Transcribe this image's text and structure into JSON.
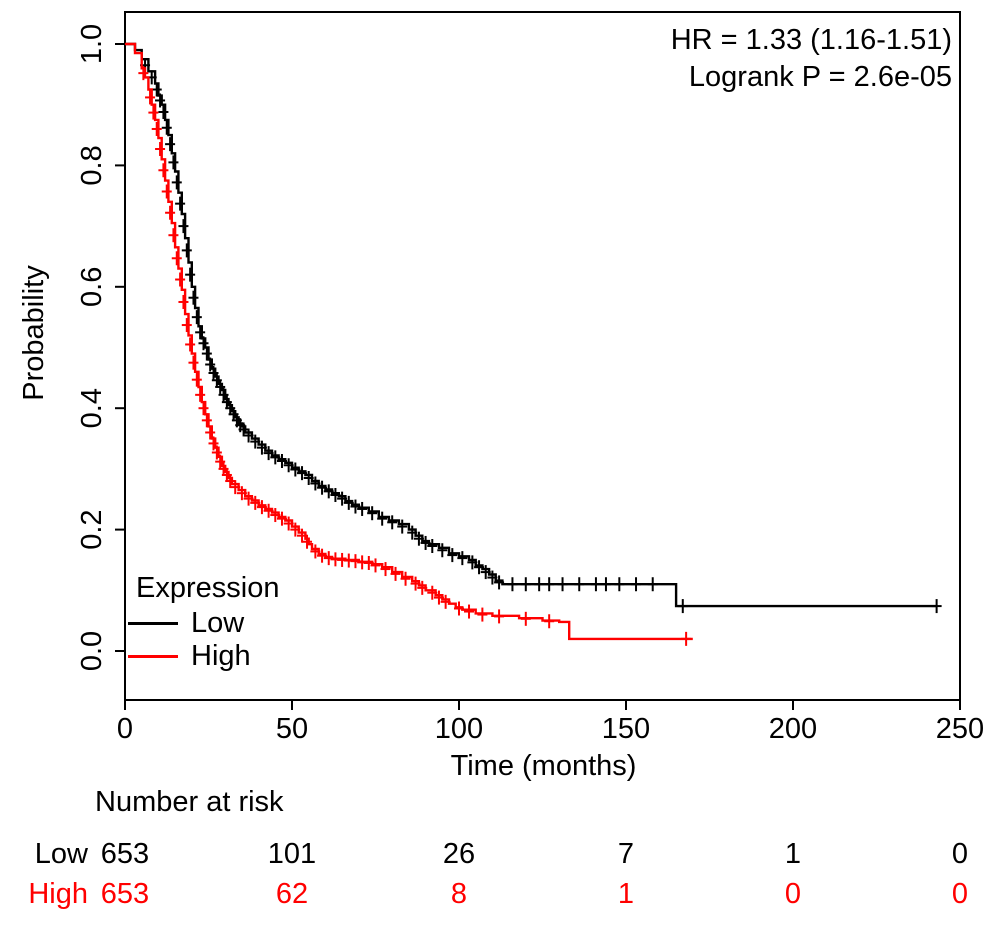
{
  "figure": {
    "description": "Kaplan-Meier survival plot with number-at-risk table"
  },
  "chart_data": {
    "type": "line",
    "subtype": "kaplan-meier-step",
    "title": "",
    "xlabel": "Time (months)",
    "ylabel": "Probability",
    "xlim": [
      0,
      250
    ],
    "ylim": [
      0.0,
      1.0
    ],
    "xticks": [
      0,
      50,
      100,
      150,
      200,
      250
    ],
    "yticks": [
      "0.0",
      "0.2",
      "0.4",
      "0.6",
      "0.8",
      "1.0"
    ],
    "grid": false,
    "annotations": [
      "HR = 1.33 (1.16-1.51)",
      "Logrank P = 2.6e-05"
    ],
    "legend": {
      "title": "Expression",
      "position": "bottom-left",
      "entries": [
        {
          "label": "Low",
          "color": "#000000"
        },
        {
          "label": "High",
          "color": "#ff0000"
        }
      ]
    },
    "series": [
      {
        "name": "Low",
        "color": "#000000",
        "steps": [
          [
            0,
            1.0
          ],
          [
            3,
            0.99
          ],
          [
            5,
            0.975
          ],
          [
            7,
            0.955
          ],
          [
            9,
            0.935
          ],
          [
            10,
            0.915
          ],
          [
            11,
            0.9
          ],
          [
            12,
            0.875
          ],
          [
            13,
            0.85
          ],
          [
            14,
            0.82
          ],
          [
            15,
            0.79
          ],
          [
            16,
            0.755
          ],
          [
            17,
            0.72
          ],
          [
            18,
            0.68
          ],
          [
            19,
            0.64
          ],
          [
            20,
            0.6
          ],
          [
            21,
            0.565
          ],
          [
            22,
            0.535
          ],
          [
            23,
            0.515
          ],
          [
            24,
            0.5
          ],
          [
            25,
            0.48
          ],
          [
            26,
            0.465
          ],
          [
            27,
            0.452
          ],
          [
            28,
            0.44
          ],
          [
            29,
            0.43
          ],
          [
            30,
            0.415
          ],
          [
            31,
            0.405
          ],
          [
            32,
            0.395
          ],
          [
            33,
            0.385
          ],
          [
            34,
            0.375
          ],
          [
            35,
            0.37
          ],
          [
            36,
            0.36
          ],
          [
            38,
            0.35
          ],
          [
            40,
            0.34
          ],
          [
            42,
            0.33
          ],
          [
            44,
            0.322
          ],
          [
            46,
            0.316
          ],
          [
            48,
            0.31
          ],
          [
            50,
            0.302
          ],
          [
            52,
            0.296
          ],
          [
            54,
            0.29
          ],
          [
            56,
            0.28
          ],
          [
            58,
            0.272
          ],
          [
            60,
            0.266
          ],
          [
            62,
            0.26
          ],
          [
            64,
            0.255
          ],
          [
            66,
            0.247
          ],
          [
            68,
            0.241
          ],
          [
            70,
            0.236
          ],
          [
            73,
            0.23
          ],
          [
            76,
            0.221
          ],
          [
            79,
            0.215
          ],
          [
            82,
            0.209
          ],
          [
            85,
            0.2
          ],
          [
            87,
            0.19
          ],
          [
            89,
            0.181
          ],
          [
            91,
            0.176
          ],
          [
            94,
            0.17
          ],
          [
            97,
            0.161
          ],
          [
            100,
            0.156
          ],
          [
            103,
            0.15
          ],
          [
            105,
            0.141
          ],
          [
            107,
            0.135
          ],
          [
            109,
            0.126
          ],
          [
            111,
            0.116
          ],
          [
            113,
            0.11
          ],
          [
            163,
            0.11
          ],
          [
            165,
            0.074
          ],
          [
            243,
            0.074
          ]
        ],
        "censors": [
          [
            6,
            0.965
          ],
          [
            8,
            0.945
          ],
          [
            9.5,
            0.925
          ],
          [
            10.5,
            0.907
          ],
          [
            11.5,
            0.888
          ],
          [
            12.5,
            0.862
          ],
          [
            13.5,
            0.835
          ],
          [
            14.5,
            0.805
          ],
          [
            15.5,
            0.772
          ],
          [
            16.5,
            0.737
          ],
          [
            17.5,
            0.7
          ],
          [
            18.5,
            0.66
          ],
          [
            19.5,
            0.62
          ],
          [
            20.5,
            0.582
          ],
          [
            21.5,
            0.55
          ],
          [
            22.5,
            0.525
          ],
          [
            23.5,
            0.507
          ],
          [
            24.5,
            0.49
          ],
          [
            25.5,
            0.472
          ],
          [
            26.5,
            0.458
          ],
          [
            27.5,
            0.446
          ],
          [
            28.5,
            0.435
          ],
          [
            29.5,
            0.422
          ],
          [
            30.5,
            0.41
          ],
          [
            31.5,
            0.4
          ],
          [
            32.5,
            0.39
          ],
          [
            33.5,
            0.38
          ],
          [
            34.5,
            0.372
          ],
          [
            35.5,
            0.365
          ],
          [
            37,
            0.355
          ],
          [
            39,
            0.345
          ],
          [
            41,
            0.335
          ],
          [
            43,
            0.326
          ],
          [
            45,
            0.319
          ],
          [
            47,
            0.313
          ],
          [
            49,
            0.306
          ],
          [
            51,
            0.299
          ],
          [
            53,
            0.293
          ],
          [
            55,
            0.285
          ],
          [
            57,
            0.276
          ],
          [
            59,
            0.269
          ],
          [
            61,
            0.263
          ],
          [
            63,
            0.257
          ],
          [
            65,
            0.251
          ],
          [
            67,
            0.244
          ],
          [
            69,
            0.238
          ],
          [
            71,
            0.234
          ],
          [
            74,
            0.227
          ],
          [
            77,
            0.218
          ],
          [
            80,
            0.212
          ],
          [
            83,
            0.205
          ],
          [
            86,
            0.195
          ],
          [
            88,
            0.185
          ],
          [
            90,
            0.178
          ],
          [
            92,
            0.173
          ],
          [
            95,
            0.166
          ],
          [
            98,
            0.158
          ],
          [
            101,
            0.153
          ],
          [
            104,
            0.146
          ],
          [
            106,
            0.138
          ],
          [
            108,
            0.13
          ],
          [
            110,
            0.121
          ],
          [
            112,
            0.113
          ],
          [
            116,
            0.11
          ],
          [
            120,
            0.11
          ],
          [
            124,
            0.11
          ],
          [
            127,
            0.11
          ],
          [
            131,
            0.11
          ],
          [
            136,
            0.11
          ],
          [
            141,
            0.11
          ],
          [
            144,
            0.11
          ],
          [
            148,
            0.11
          ],
          [
            153,
            0.11
          ],
          [
            158,
            0.11
          ],
          [
            167,
            0.074
          ],
          [
            243,
            0.074
          ]
        ]
      },
      {
        "name": "High",
        "color": "#ff0000",
        "steps": [
          [
            0,
            1.0
          ],
          [
            3,
            0.985
          ],
          [
            5,
            0.96
          ],
          [
            6,
            0.945
          ],
          [
            7,
            0.925
          ],
          [
            8,
            0.9
          ],
          [
            9,
            0.875
          ],
          [
            10,
            0.845
          ],
          [
            11,
            0.81
          ],
          [
            12,
            0.775
          ],
          [
            13,
            0.74
          ],
          [
            14,
            0.705
          ],
          [
            15,
            0.665
          ],
          [
            16,
            0.63
          ],
          [
            17,
            0.595
          ],
          [
            18,
            0.555
          ],
          [
            19,
            0.52
          ],
          [
            20,
            0.49
          ],
          [
            21,
            0.46
          ],
          [
            22,
            0.435
          ],
          [
            23,
            0.41
          ],
          [
            24,
            0.39
          ],
          [
            25,
            0.37
          ],
          [
            26,
            0.35
          ],
          [
            27,
            0.335
          ],
          [
            28,
            0.32
          ],
          [
            29,
            0.305
          ],
          [
            30,
            0.295
          ],
          [
            31,
            0.285
          ],
          [
            32,
            0.275
          ],
          [
            34,
            0.265
          ],
          [
            36,
            0.255
          ],
          [
            38,
            0.248
          ],
          [
            40,
            0.24
          ],
          [
            42,
            0.234
          ],
          [
            44,
            0.228
          ],
          [
            46,
            0.221
          ],
          [
            48,
            0.215
          ],
          [
            50,
            0.205
          ],
          [
            52,
            0.195
          ],
          [
            54,
            0.185
          ],
          [
            55,
            0.176
          ],
          [
            56,
            0.168
          ],
          [
            58,
            0.16
          ],
          [
            60,
            0.155
          ],
          [
            62,
            0.152
          ],
          [
            66,
            0.15
          ],
          [
            70,
            0.147
          ],
          [
            74,
            0.143
          ],
          [
            77,
            0.138
          ],
          [
            80,
            0.13
          ],
          [
            83,
            0.122
          ],
          [
            86,
            0.115
          ],
          [
            88,
            0.108
          ],
          [
            90,
            0.1
          ],
          [
            93,
            0.092
          ],
          [
            95,
            0.085
          ],
          [
            97,
            0.078
          ],
          [
            99,
            0.072
          ],
          [
            101,
            0.068
          ],
          [
            105,
            0.062
          ],
          [
            110,
            0.058
          ],
          [
            118,
            0.054
          ],
          [
            125,
            0.05
          ],
          [
            130,
            0.048
          ],
          [
            133,
            0.02
          ],
          [
            170,
            0.02
          ]
        ],
        "censors": [
          [
            5.5,
            0.952
          ],
          [
            7.5,
            0.912
          ],
          [
            8.5,
            0.887
          ],
          [
            9.5,
            0.86
          ],
          [
            10.5,
            0.827
          ],
          [
            11.5,
            0.792
          ],
          [
            12.5,
            0.757
          ],
          [
            13.5,
            0.722
          ],
          [
            14.5,
            0.685
          ],
          [
            15.5,
            0.647
          ],
          [
            16.5,
            0.612
          ],
          [
            17.5,
            0.575
          ],
          [
            18.5,
            0.537
          ],
          [
            19.5,
            0.505
          ],
          [
            20.5,
            0.475
          ],
          [
            21.5,
            0.447
          ],
          [
            22.5,
            0.422
          ],
          [
            23.5,
            0.4
          ],
          [
            24.5,
            0.38
          ],
          [
            25.5,
            0.36
          ],
          [
            26.5,
            0.342
          ],
          [
            27.5,
            0.327
          ],
          [
            28.5,
            0.312
          ],
          [
            29.5,
            0.3
          ],
          [
            30.5,
            0.29
          ],
          [
            31.5,
            0.28
          ],
          [
            33,
            0.27
          ],
          [
            35,
            0.26
          ],
          [
            37,
            0.251
          ],
          [
            39,
            0.244
          ],
          [
            41,
            0.237
          ],
          [
            43,
            0.231
          ],
          [
            45,
            0.224
          ],
          [
            47,
            0.218
          ],
          [
            49,
            0.21
          ],
          [
            51,
            0.2
          ],
          [
            53,
            0.19
          ],
          [
            54.5,
            0.18
          ],
          [
            57,
            0.164
          ],
          [
            59,
            0.157
          ],
          [
            61,
            0.153
          ],
          [
            63,
            0.151
          ],
          [
            65,
            0.15
          ],
          [
            67,
            0.149
          ],
          [
            69,
            0.148
          ],
          [
            71,
            0.146
          ],
          [
            73,
            0.145
          ],
          [
            75,
            0.141
          ],
          [
            78,
            0.135
          ],
          [
            81,
            0.127
          ],
          [
            84,
            0.119
          ],
          [
            87,
            0.111
          ],
          [
            89,
            0.104
          ],
          [
            92,
            0.096
          ],
          [
            94,
            0.088
          ],
          [
            96,
            0.081
          ],
          [
            100,
            0.07
          ],
          [
            103,
            0.065
          ],
          [
            107,
            0.06
          ],
          [
            112,
            0.057
          ],
          [
            120,
            0.053
          ],
          [
            127,
            0.049
          ],
          [
            168,
            0.02
          ]
        ]
      }
    ],
    "risk_table": {
      "title": "Number at risk",
      "times": [
        0,
        50,
        100,
        150,
        200,
        250
      ],
      "rows": [
        {
          "label": "Low",
          "color": "#000000",
          "values": [
            "653",
            "101",
            "26",
            "7",
            "1",
            "0"
          ]
        },
        {
          "label": "High",
          "color": "#ff0000",
          "values": [
            "653",
            "62",
            "8",
            "1",
            "0",
            "0"
          ]
        }
      ]
    }
  }
}
